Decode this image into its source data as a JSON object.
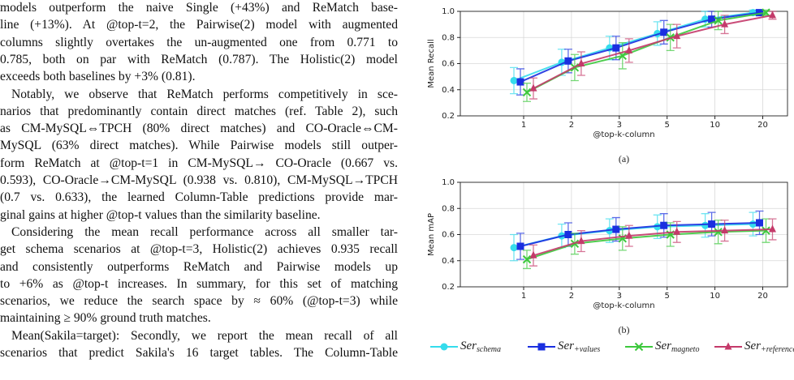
{
  "paragraphs": [
    [
      "models outperform the naive Single (+43%) and ReMatch base-",
      "line (+13%). At @top-t=2, the Pairwise(2) model with augmented",
      "columns slightly overtakes the un-augmented one from 0.771 to",
      "0.785, both on par with ReMatch (0.787). The Holistic(2) model",
      "exceeds both baselines by +3% (0.81)."
    ],
    [
      "Notably, we observe that ReMatch performs competitively in sce-",
      "narios that predominantly contain direct matches (ref. Table 2), such",
      "as CM-MySQL⇔TPCH (80% direct matches) and CO-Oracle⇔CM-",
      "MySQL (63% direct matches). While Pairwise models still outper-",
      "form ReMatch at @top-t=1 in CM-MySQL→ CO-Oracle (0.667 vs.",
      "0.593), CO-Oracle→CM-MySQL (0.938 vs. 0.810), CM-MySQL→TPCH",
      "(0.7 vs. 0.633), the learned Column-Table predictions provide mar-",
      "ginal gains at higher @top-t values than the similarity baseline."
    ],
    [
      "Considering the mean recall performance across all smaller tar-",
      "get schema scenarios at @top-t=3, Holistic(2) achieves 0.935 recall",
      "and consistently outperforms ReMatch and Pairwise models up",
      "to +6% as @top-t increases. In summary, for this set of matching",
      "scenarios, we reduce the search space by ≈ 60% (@top-t=3) while",
      "maintaining ≥ 90% ground truth matches."
    ],
    [
      "Mean(Sakila=target): Secondly, we report the mean recall of all",
      "scenarios that predict Sakila's 16 target tables. The Column-Table"
    ]
  ],
  "chart_data": [
    {
      "type": "line",
      "caption": "(a)",
      "ylabel": "Mean Recall",
      "xlabel": "@top-k-column",
      "categories": [
        "1",
        "2",
        "3",
        "5",
        "10",
        "20"
      ],
      "ylim": [
        0.2,
        1.0
      ],
      "yticks": [
        0.2,
        0.4,
        0.6,
        0.8,
        {
          "value": 1.0,
          "label": "1.0"
        }
      ],
      "grid": true,
      "series": [
        {
          "values": [
            0.47,
            0.61,
            0.72,
            0.83,
            0.94,
            0.99
          ],
          "errors": [
            0.1,
            0.1,
            0.09,
            0.09,
            0.06,
            0.02
          ]
        },
        {
          "values": [
            0.46,
            0.62,
            0.72,
            0.84,
            0.94,
            0.99
          ],
          "errors": [
            0.1,
            0.09,
            0.09,
            0.09,
            0.06,
            0.02
          ]
        },
        {
          "values": [
            0.38,
            0.57,
            0.66,
            0.8,
            0.93,
            0.99
          ],
          "errors": [
            0.07,
            0.1,
            0.1,
            0.1,
            0.07,
            0.02
          ]
        },
        {
          "values": [
            0.41,
            0.6,
            0.7,
            0.81,
            0.9,
            0.97
          ],
          "errors": [
            0.08,
            0.09,
            0.09,
            0.09,
            0.07,
            0.03
          ]
        }
      ]
    },
    {
      "type": "line",
      "caption": "(b)",
      "ylabel": "Mean mAP",
      "xlabel": "@top-k-column",
      "categories": [
        "1",
        "2",
        "3",
        "5",
        "10",
        "20"
      ],
      "ylim": [
        0.2,
        1.0
      ],
      "yticks": [
        0.2,
        0.4,
        0.6,
        0.8,
        {
          "value": 1.0,
          "label": "1.0"
        }
      ],
      "grid": true,
      "series": [
        {
          "values": [
            0.5,
            0.59,
            0.63,
            0.66,
            0.67,
            0.68
          ],
          "errors": [
            0.1,
            0.09,
            0.09,
            0.09,
            0.09,
            0.09
          ]
        },
        {
          "values": [
            0.51,
            0.6,
            0.64,
            0.67,
            0.68,
            0.69
          ],
          "errors": [
            0.1,
            0.09,
            0.09,
            0.09,
            0.09,
            0.09
          ]
        },
        {
          "values": [
            0.41,
            0.53,
            0.57,
            0.6,
            0.62,
            0.63
          ],
          "errors": [
            0.07,
            0.08,
            0.09,
            0.09,
            0.09,
            0.09
          ]
        },
        {
          "values": [
            0.44,
            0.55,
            0.59,
            0.62,
            0.63,
            0.64
          ],
          "errors": [
            0.08,
            0.08,
            0.08,
            0.08,
            0.08,
            0.08
          ]
        }
      ]
    }
  ],
  "legend": [
    {
      "name": "Ser",
      "subscript": "schema",
      "color": "#35dcec",
      "marker": "circle"
    },
    {
      "name": "Ser",
      "subscript": "+values",
      "color": "#1a2fe0",
      "marker": "square"
    },
    {
      "name": "Ser",
      "subscript": "magneto",
      "color": "#3cc83c",
      "marker": "x"
    },
    {
      "name": "Ser",
      "subscript": "+reference",
      "color": "#c43a6a",
      "marker": "triangle"
    }
  ]
}
